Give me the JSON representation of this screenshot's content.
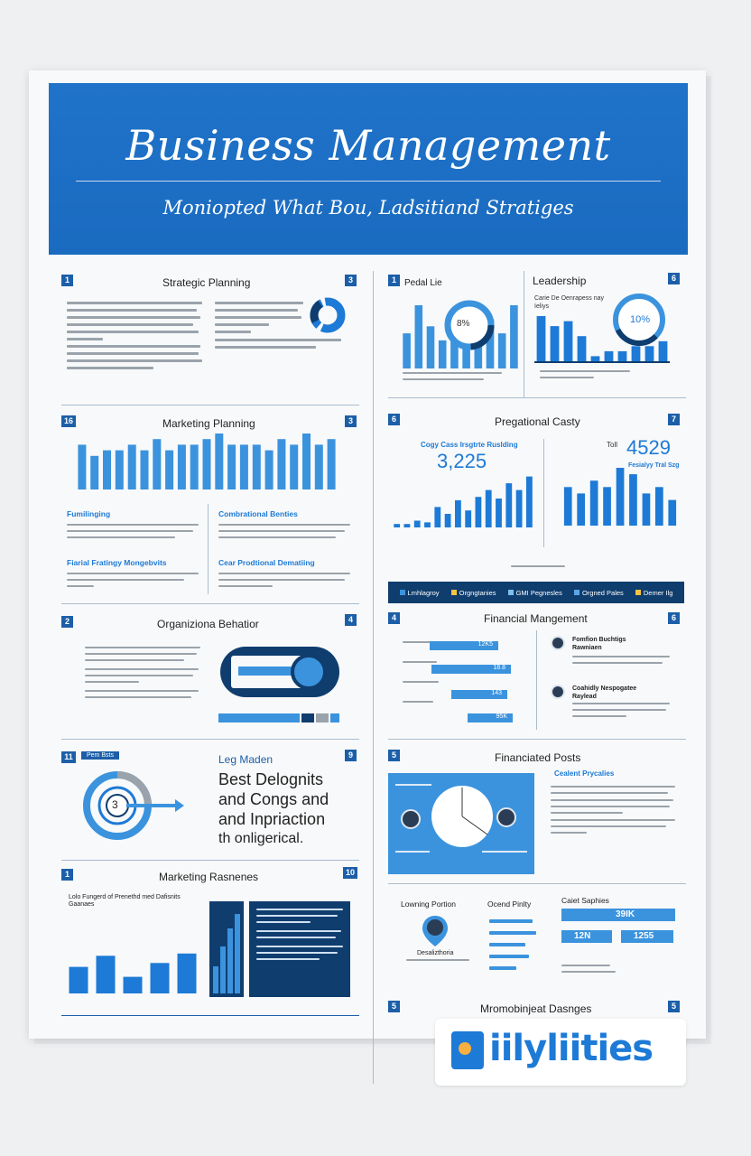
{
  "colors": {
    "primary": "#1f73c9",
    "accent": "#3b93de",
    "dark": "#0f3d6e"
  },
  "header": {
    "title": "Business Management",
    "subtitle": "Moniopted What Bou, Ladsitiand Stratiges"
  },
  "sections": {
    "strategic_planning": {
      "num_left": "1",
      "num_right": "3",
      "title": "Strategic Planning"
    },
    "pedal_lie": {
      "num_left": "1",
      "title": "Pedal Lie",
      "donut_label": "8%"
    },
    "leadership": {
      "num_right": "6",
      "title": "Leadership",
      "sub": "Carie De Oenrapess nay Ieliys",
      "donut_label": "10%"
    },
    "marketing_planning": {
      "num_left": "16",
      "num_right": "3",
      "title": "Marketing Planning",
      "sub1": "Fumilinging",
      "sub2": "Combrational Benties",
      "sub3": "Fiarial Fratingy Mongebvits",
      "sub4": "Cear Prodtional Dematiing"
    },
    "pregational_casty": {
      "num_left": "6",
      "num_right": "7",
      "title": "Pregational Casty",
      "kpi1_label": "Cogy Cass Irsgtrte Ruslding",
      "kpi1_value": "3,225",
      "kpi2_label": "Toll",
      "kpi2_value": "4529",
      "kpi2_sub": "Fesialyy Tral Szg"
    },
    "legend": [
      "Lmhlagroy",
      "Orgngtanies",
      "GMI Pegnesles",
      "Orgned Pales",
      "Demer Ilg"
    ],
    "organizational_behavior": {
      "num_left": "2",
      "num_right": "4",
      "title": "Organiziona Behatior"
    },
    "financial_management": {
      "num_left": "4",
      "num_right": "6",
      "title": "Financial Mangement",
      "bars": [
        "12K5",
        "18.8",
        "143",
        "95K"
      ],
      "person1": "Fomfion Buchtigs Rawniaen",
      "person2": "Coahidly Nespogatee Raylead"
    },
    "leg_maden": {
      "num_left": "11",
      "num_right": "9",
      "badge": "Pem Bsts",
      "title": "Leg Maden",
      "body_lines": [
        "Best Delognits",
        "and Congs and",
        "and Inpriaction",
        "th onligerical."
      ],
      "ring_label": "3"
    },
    "financiated_posts": {
      "num_left": "5",
      "title": "Financiated Posts",
      "sub": "Cealent Prycalies"
    },
    "marketing_rasnenes": {
      "num_left": "1",
      "num_right": "10",
      "title": "Marketing Rasnenes",
      "chart_title": "Lolo Fungerd of Prenethd med Dafisnits Gaanaes"
    },
    "bottom_right": {
      "col1": "Lowning Portion",
      "col2": "Ocend Pinlty",
      "col3": "Caiet Saphies",
      "val1": "39IK",
      "val2": "12N",
      "val3": "1255",
      "person": "Desalizthoria"
    },
    "footer_section": {
      "num_left": "5",
      "num_right": "5",
      "title": "Mromobinjeat Dasnges"
    }
  },
  "logo": {
    "text": "iilyliities"
  },
  "chart_data": [
    {
      "type": "bar",
      "title": "Pedal Lie",
      "values": [
        5,
        9,
        6,
        4,
        5,
        3,
        6,
        7,
        5,
        9
      ]
    },
    {
      "type": "bar",
      "title": "Leadership",
      "values": [
        9,
        7,
        8,
        5,
        1,
        2,
        2,
        3,
        3,
        4
      ]
    },
    {
      "type": "bar",
      "title": "Marketing Planning",
      "values": [
        8,
        6,
        7,
        7,
        8,
        7,
        9,
        7,
        8,
        8,
        9,
        10,
        8,
        8,
        8,
        7,
        9,
        8,
        10,
        8,
        9
      ]
    },
    {
      "type": "bar",
      "title": "Pregational Casty",
      "ylim": [
        0,
        50
      ],
      "values": [
        2,
        2,
        4,
        3,
        12,
        8,
        16,
        10,
        18,
        22,
        17,
        26,
        22,
        30
      ]
    },
    {
      "type": "bar",
      "title": "4529",
      "values": [
        6,
        5,
        7,
        6,
        9,
        8,
        5,
        6,
        4
      ]
    },
    {
      "type": "bar",
      "title": "Marketing Rasnenes",
      "ylim": [
        0,
        150
      ],
      "values": [
        48,
        68,
        30,
        55,
        72
      ]
    }
  ]
}
